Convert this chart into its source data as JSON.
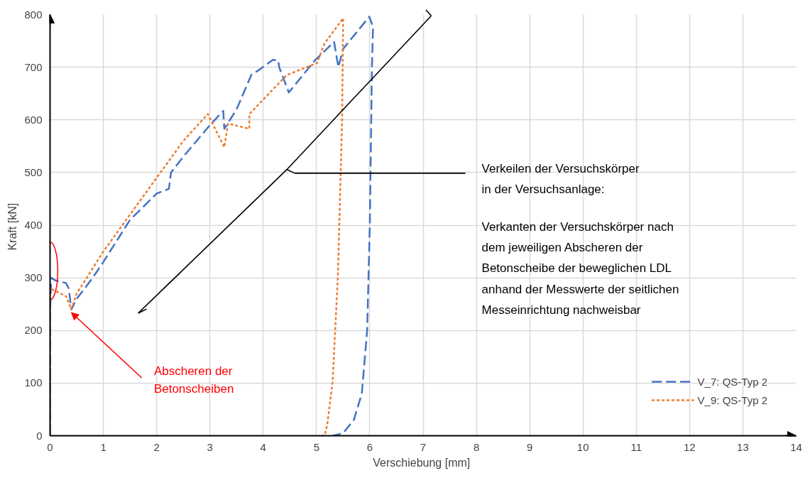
{
  "chart_data": {
    "type": "line",
    "xlabel": "Verschiebung  [mm]",
    "ylabel": "Kraft  [kN]",
    "xlim": [
      0,
      14
    ],
    "ylim": [
      0,
      800
    ],
    "xticks": [
      0,
      1,
      2,
      3,
      4,
      5,
      6,
      7,
      8,
      9,
      10,
      11,
      12,
      13,
      14
    ],
    "yticks": [
      0,
      100,
      200,
      300,
      400,
      500,
      600,
      700,
      800
    ],
    "grid": true,
    "legend": "bottom right",
    "marker": "none",
    "series": [
      {
        "name": "V_7: QS-Typ 2",
        "color": "#4472c4",
        "line_style": "dashed",
        "x": [
          0,
          0,
          0.02,
          0.1,
          0.3,
          0.35,
          0.4,
          0.5,
          0.8,
          1.0,
          1.5,
          2.0,
          2.23,
          2.27,
          2.5,
          3.0,
          3.25,
          3.27,
          3.5,
          3.78,
          3.91,
          4.18,
          4.28,
          4.3,
          4.48,
          4.97,
          5.33,
          5.41,
          5.5,
          5.99,
          6.06,
          6.04,
          6.0,
          5.95,
          5.85,
          5.7,
          5.5,
          5.3
        ],
        "values": [
          0,
          230,
          300,
          295,
          290,
          280,
          240,
          260,
          300,
          330,
          410,
          460,
          469,
          500,
          530,
          590,
          617,
          583,
          620,
          686,
          694,
          714,
          713,
          700,
          652,
          713,
          748,
          700,
          735,
          796,
          777,
          700,
          400,
          200,
          80,
          30,
          5,
          0
        ]
      },
      {
        "name": "V_9: QS-Typ 2",
        "color": "#ed7d31",
        "line_style": "dotted",
        "x": [
          0,
          0,
          0.3,
          0.4,
          0.5,
          1.0,
          1.5,
          2.0,
          2.5,
          2.96,
          3.27,
          3.34,
          3.74,
          3.74,
          4.44,
          5.01,
          5.15,
          5.5,
          5.48,
          5.4,
          5.3,
          5.2,
          5.15,
          5.05
        ],
        "values": [
          0,
          280,
          265,
          240,
          270,
          350,
          420,
          490,
          560,
          611,
          548,
          593,
          583,
          611,
          685,
          708,
          745,
          793,
          600,
          300,
          100,
          20,
          0,
          0
        ]
      }
    ],
    "annotations": [
      {
        "text": "Abscheren der\nBetonscheiben",
        "x": 0.4,
        "y": 234
      },
      "Verkeilen der Versuchskörper\nin der Versuchsanlage:",
      "Verkanten der Versuchskörper nach\ndem jeweiligen Abscheren der\nBetonscheibe der beweglichen LDL\nanhand der Messwerte der seitlichen\nMesseinrichtung nachweisbar"
    ]
  }
}
